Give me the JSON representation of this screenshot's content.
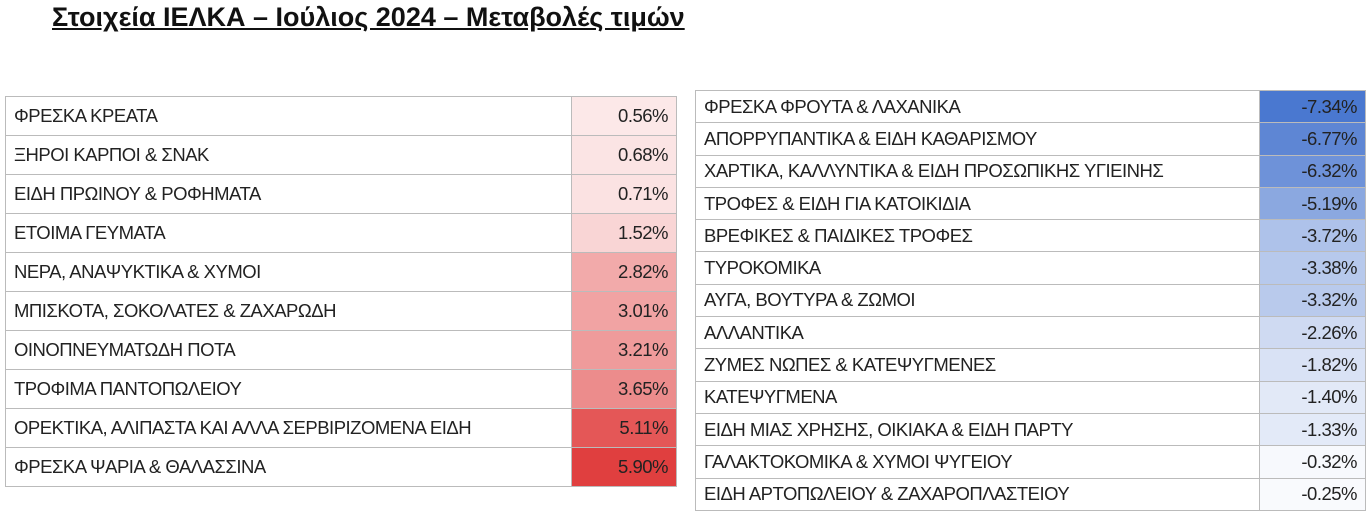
{
  "header": {
    "title": "Στοιχεία ΙΕΛΚΑ – Ιούλιος 2024 – Μεταβολές τιμών"
  },
  "tables": [
    {
      "rows": [
        {
          "label": "ΦΡΕΣΚΑ ΚΡΕΑΤΑ",
          "value": "0.56%",
          "color": "#fce8e8"
        },
        {
          "label": "ΞΗΡΟΙ ΚΑΡΠΟΙ & ΣΝΑΚ",
          "value": "0.68%",
          "color": "#fbe4e4"
        },
        {
          "label": "ΕΙΔΗ ΠΡΩΙΝΟΥ & ΡΟΦΗΜΑΤΑ",
          "value": "0.71%",
          "color": "#fbe2e2"
        },
        {
          "label": "ΕΤΟΙΜΑ ΓΕΥΜΑΤΑ",
          "value": "1.52%",
          "color": "#f9d5d5"
        },
        {
          "label": "ΝΕΡΑ, ΑΝΑΨΥΚΤΙΚΑ & ΧΥΜΟΙ",
          "value": "2.82%",
          "color": "#f2aaaa"
        },
        {
          "label": "ΜΠΙΣΚΟΤΑ, ΣΟΚΟΛΑΤΕΣ & ΖΑΧΑΡΩΔΗ",
          "value": "3.01%",
          "color": "#f1a3a3"
        },
        {
          "label": "ΟΙΝΟΠΝΕΥΜΑΤΩΔΗ ΠΟΤΑ",
          "value": "3.21%",
          "color": "#ef9b9b"
        },
        {
          "label": "ΤΡΟΦΙΜΑ ΠΑΝΤΟΠΩΛΕΙΟΥ",
          "value": "3.65%",
          "color": "#ec8c8c"
        },
        {
          "label": "ΟΡΕΚΤΙΚΑ, ΑΛΙΠΑΣΤΑ ΚΑΙ ΑΛΛΑ ΣΕΡΒΙΡΙΖΟΜΕΝΑ ΕΙΔΗ",
          "value": "5.11%",
          "color": "#e45757"
        },
        {
          "label": "ΦΡΕΣΚΑ ΨΑΡΙΑ & ΘΑΛΑΣΣΙΝΑ",
          "value": "5.90%",
          "color": "#e03f3f"
        }
      ]
    },
    {
      "rows": [
        {
          "label": "ΦΡΕΣΚΑ ΦΡΟΥΤΑ & ΛΑΧΑΝΙΚΑ",
          "value": "-7.34%",
          "color": "#4a78d0"
        },
        {
          "label": "ΑΠΟΡΡΥΠΑΝΤΙΚΑ & ΕΙΔΗ ΚΑΘΑΡΙΣΜΟΥ",
          "value": "-6.77%",
          "color": "#5e86d4"
        },
        {
          "label": "ΧΑΡΤΙΚΑ, ΚΑΛΛΥΝΤΙΚΑ & ΕΙΔΗ ΠΡΟΣΩΠΙΚΗΣ ΥΓΙΕΙΝΗΣ",
          "value": "-6.32%",
          "color": "#6e92d9"
        },
        {
          "label": "ΤΡΟΦΕΣ & ΕΙΔΗ ΓΙΑ ΚΑΤΟΙΚΙΔΙΑ",
          "value": "-5.19%",
          "color": "#8ba8e0"
        },
        {
          "label": "ΒΡΕΦΙΚΕΣ & ΠΑΙΔΙΚΕΣ ΤΡΟΦΕΣ",
          "value": "-3.72%",
          "color": "#aec2ea"
        },
        {
          "label": "ΤΥΡΟΚΟΜΙΚΑ",
          "value": "-3.38%",
          "color": "#b7c9ec"
        },
        {
          "label": "ΑΥΓΑ, ΒΟΥΤΥΡΑ & ΖΩΜΟΙ",
          "value": "-3.32%",
          "color": "#b9caec"
        },
        {
          "label": "ΑΛΛΑΝΤΙΚΑ",
          "value": "-2.26%",
          "color": "#cfdaf2"
        },
        {
          "label": "ΖΥΜΕΣ ΝΩΠΕΣ & ΚΑΤΕΨΥΓΜΕΝΕΣ",
          "value": "-1.82%",
          "color": "#d9e2f5"
        },
        {
          "label": "ΚΑΤΕΨΥΓΜΕΝΑ",
          "value": "-1.40%",
          "color": "#e2e9f7"
        },
        {
          "label": "ΕΙΔΗ ΜΙΑΣ ΧΡΗΣΗΣ, ΟΙΚΙΑΚΑ & ΕΙΔΗ ΠΑΡΤΥ",
          "value": "-1.33%",
          "color": "#e3eaf8"
        },
        {
          "label": "ΓΑΛΑΚΤΟΚΟΜΙΚΑ & ΧΥΜΟΙ ΨΥΓΕΙΟΥ",
          "value": "-0.32%",
          "color": "#f7f9fd"
        },
        {
          "label": "ΕΙΔΗ ΑΡΤΟΠΩΛΕΙΟΥ & ΖΑΧΑΡΟΠΛΑΣΤΕΙΟΥ",
          "value": "-0.25%",
          "color": "#f9fafd"
        }
      ]
    }
  ]
}
